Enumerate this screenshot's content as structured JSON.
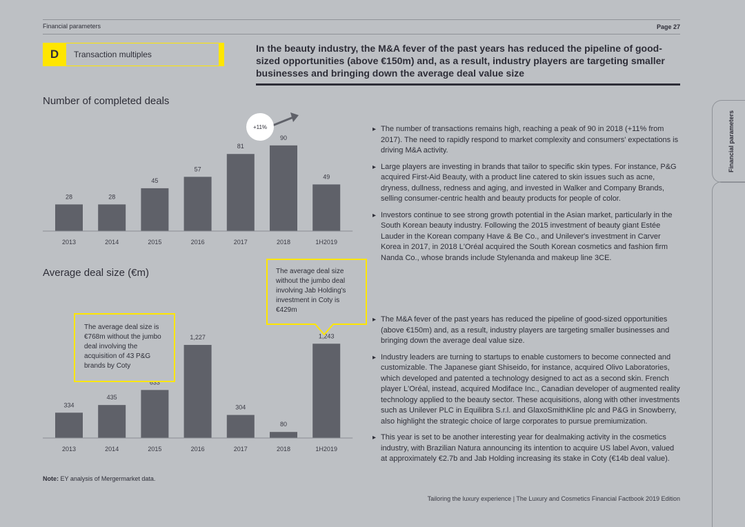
{
  "header": {
    "section": "Financial parameters",
    "page": "Page 27"
  },
  "section_marker": {
    "letter": "D",
    "label": "Transaction multiples"
  },
  "headline": "In the beauty industry, the M&A fever of the past years has reduced the pipeline of good-sized opportunities (above €150m) and, as a result, industry players are targeting smaller businesses and bringing down the average deal value size",
  "side_tab": "Financial parameters",
  "chart_data": [
    {
      "type": "bar",
      "title": "Number of completed deals",
      "categories": [
        "2013",
        "2014",
        "2015",
        "2016",
        "2017",
        "2018",
        "1H2019"
      ],
      "values": [
        28,
        28,
        45,
        57,
        81,
        90,
        49
      ],
      "value_labels": [
        "28",
        "28",
        "45",
        "57",
        "81",
        "90",
        "49"
      ],
      "annotation": "+11%",
      "ylim": [
        0,
        100
      ]
    },
    {
      "type": "bar",
      "title": "Average deal size (€m)",
      "categories": [
        "2013",
        "2014",
        "2015",
        "2016",
        "2017",
        "2018",
        "1H2019"
      ],
      "values": [
        334,
        435,
        633,
        1227,
        304,
        80,
        1243
      ],
      "value_labels": [
        "334",
        "435",
        "633",
        "1,227",
        "304",
        "80",
        "1,243"
      ],
      "ylim": [
        0,
        1400
      ]
    }
  ],
  "callouts": {
    "c1": "The average deal size is €768m without the jumbo deal involving the acquisition of 43 P&G brands by Coty",
    "c2": "The average deal size without the jumbo deal involving Jab Holding's investment in Coty is €429m"
  },
  "bullets_top": [
    "The number of transactions remains high, reaching a peak of 90 in 2018 (+11% from 2017). The need to rapidly respond to market complexity and consumers' expectations is driving M&A activity.",
    "Large players are investing in brands that tailor to specific skin types. For instance, P&G acquired First-Aid Beauty, with a product line catered to skin issues such as acne, dryness, dullness, redness and aging, and invested in Walker and Company Brands, selling consumer-centric health and beauty products for people of color.",
    "Investors continue to see strong growth potential in the Asian market, particularly in the South Korean beauty industry. Following the 2015 investment of beauty giant Estée Lauder in the Korean company Have & Be Co., and Unilever's investment in Carver Korea in 2017, in 2018 L'Oréal acquired the South Korean cosmetics and fashion firm Nanda Co., whose brands include Stylenanda and makeup line 3CE."
  ],
  "bullets_bottom": [
    "The M&A fever of the past years has reduced the pipeline of good-sized opportunities (above €150m) and, as a result, industry players are targeting smaller businesses and bringing down the average deal value size.",
    "Industry leaders are turning to startups to enable customers to become connected and customizable. The Japanese giant Shiseido, for instance, acquired Olivo Laboratories, which developed and patented a technology designed to act as a second skin. French player L'Oréal, instead, acquired Modiface Inc., Canadian developer of augmented reality technology applied to the beauty sector. These acquisitions, along with other investments such as Unilever PLC in Equilibra S.r.l. and GlaxoSmithKline plc and P&G in Snowberry, also highlight the strategic choice of large corporates to pursue premiumization.",
    "This year is set to be another interesting year for dealmaking activity in the cosmetics industry, with Brazilian Natura announcing its intention to acquire US label Avon, valued at approximately €2.7b and Jab Holding increasing its stake in Coty (€14b deal value)."
  ],
  "note": {
    "label": "Note:",
    "text": " EY analysis of Mergermarket data."
  },
  "footer": "Tailoring the luxury experience | The Luxury and Cosmetics Financial Factbook 2019 Edition",
  "colors": {
    "background": "#bdc0c4",
    "bar": "#5f6169",
    "accent": "#ffe600",
    "text": "#2e2e38"
  }
}
